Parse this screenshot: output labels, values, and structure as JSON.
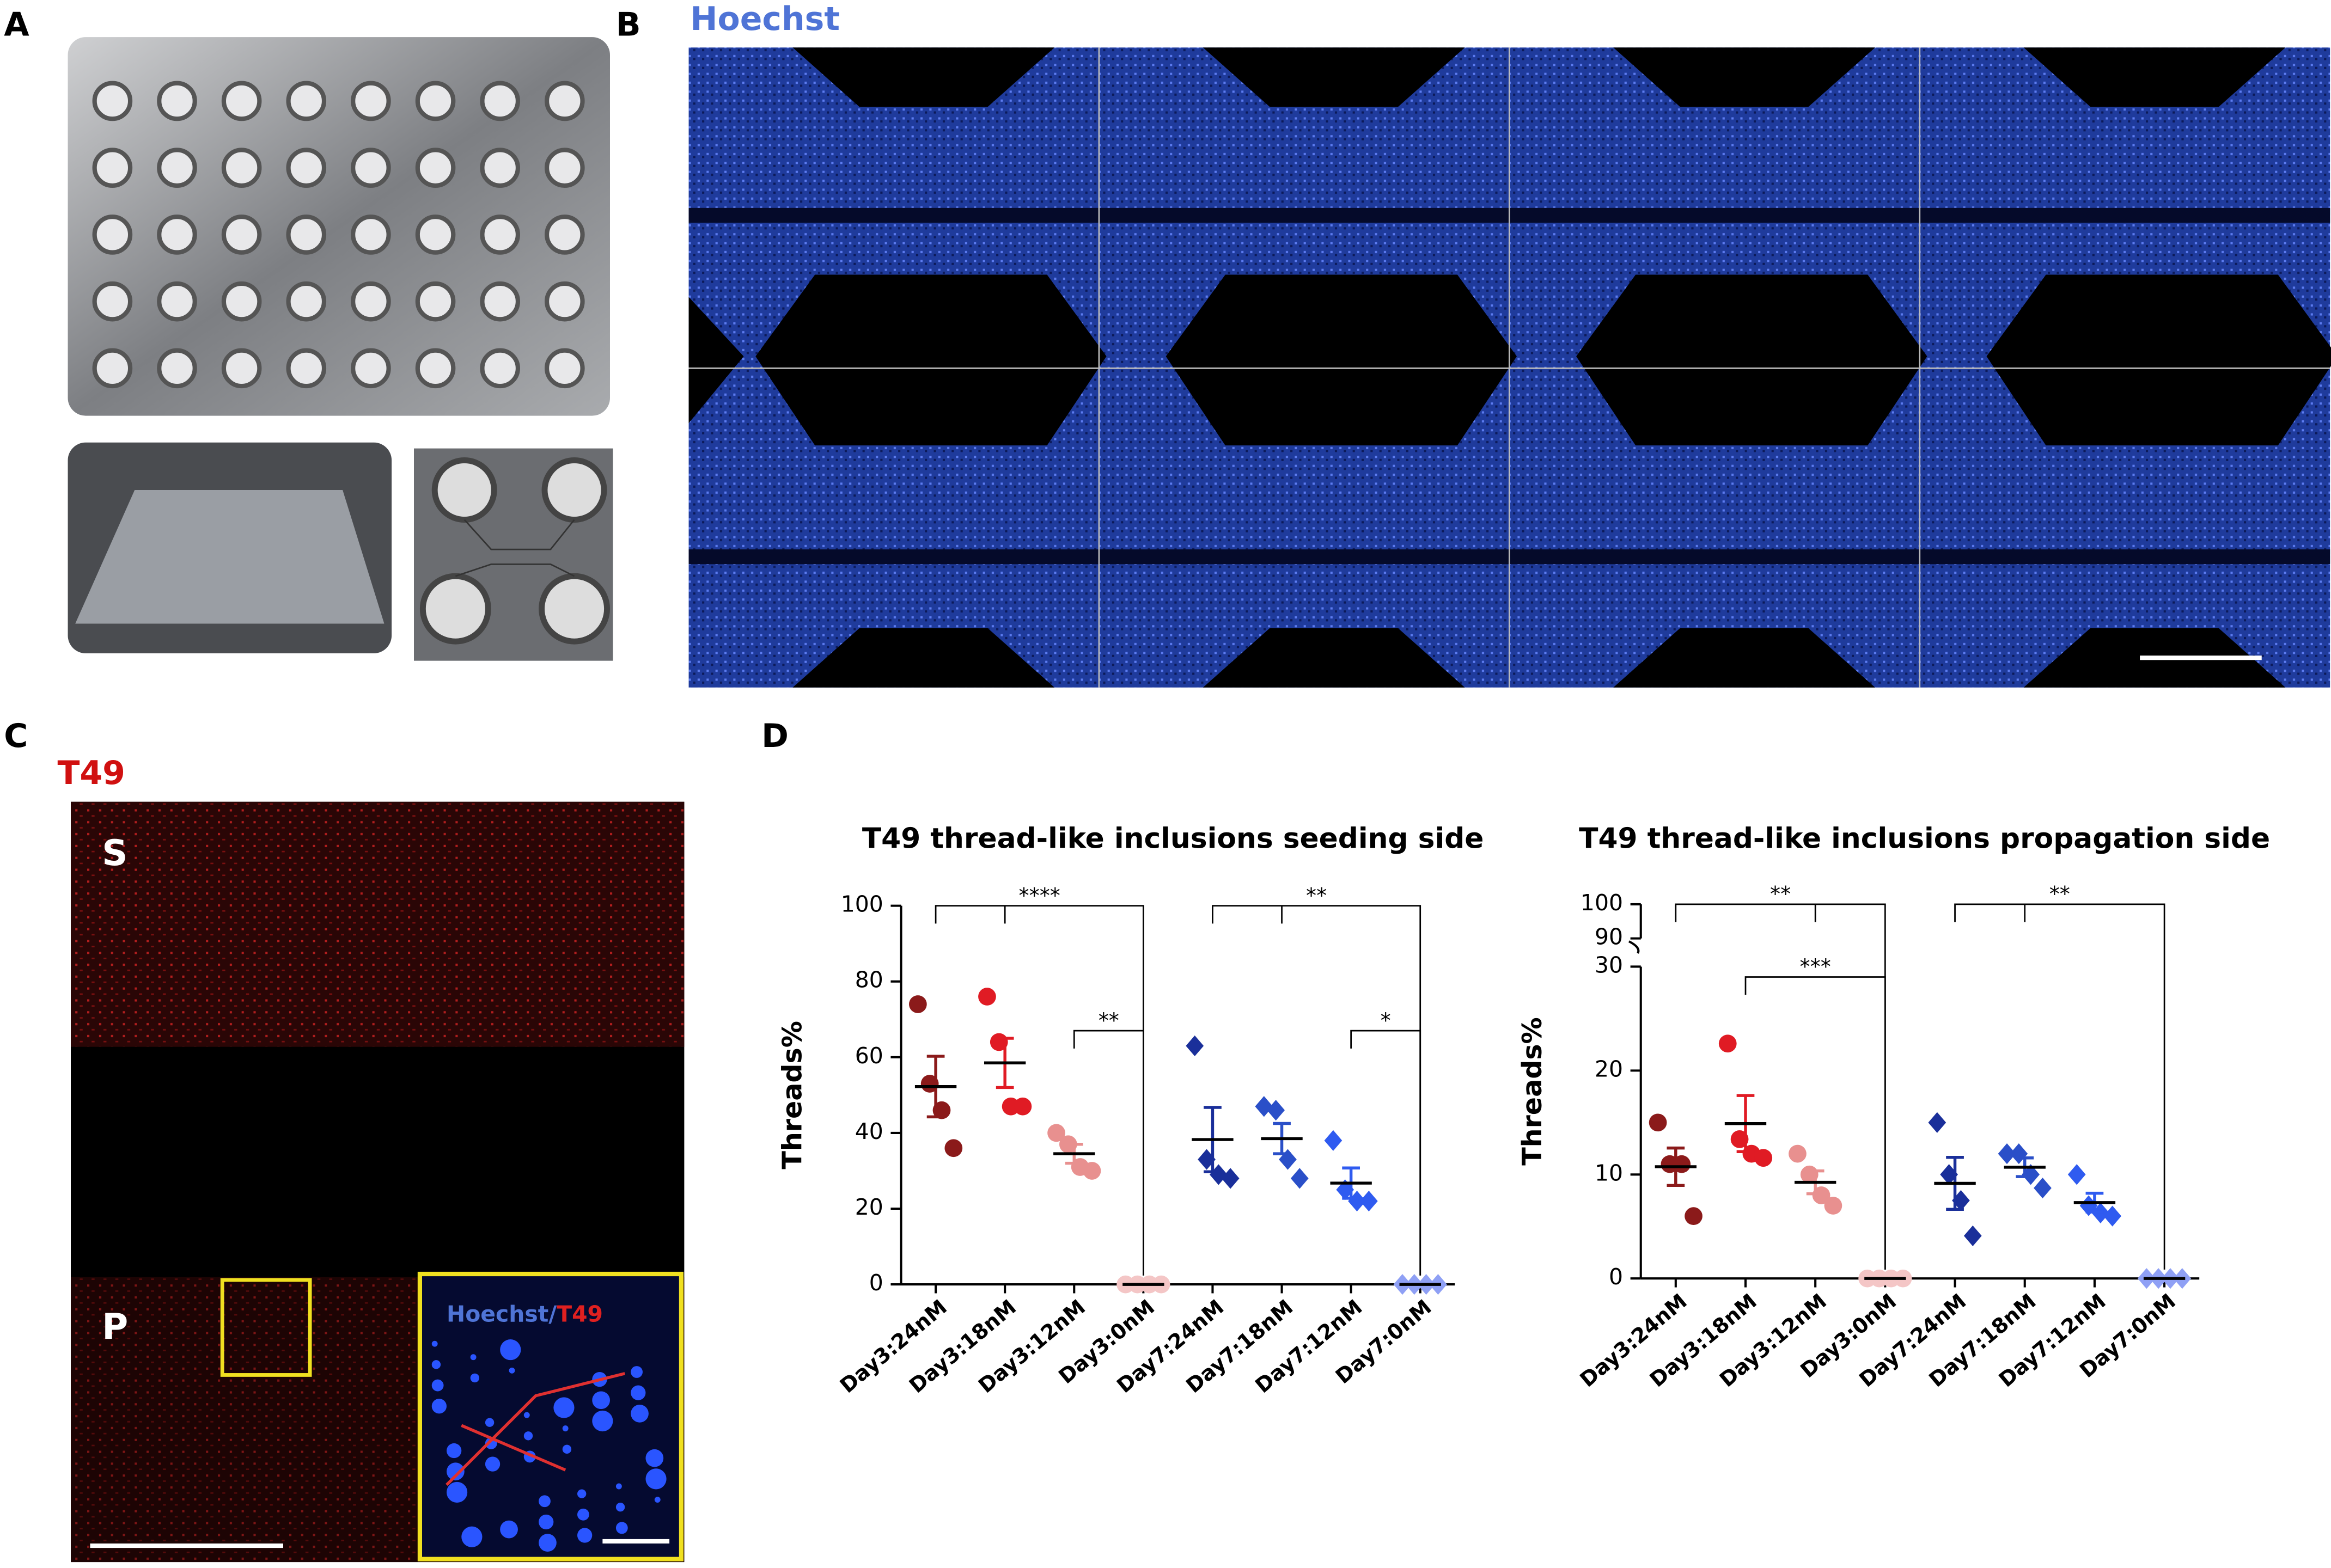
{
  "panel_labels": {
    "a": "A",
    "b": "B",
    "c": "C",
    "d": "D"
  },
  "panel_b": {
    "stain": "Hoechst"
  },
  "panel_c": {
    "stain": "T49",
    "side_labels": [
      "S",
      "P"
    ],
    "inset_label": [
      "Hoechst/",
      "T49"
    ]
  },
  "chart_data": [
    {
      "type": "dot",
      "title": "T49 thread-like inclusions seeding side",
      "y_label": "Threads%",
      "categories": [
        "Day3:24nM",
        "Day3:18nM",
        "Day3:12nM",
        "Day3:0nM",
        "Day7:24nM",
        "Day7:18nM",
        "Day7:12nM",
        "Day7:0nM"
      ],
      "markers": [
        "circle",
        "circle",
        "circle",
        "circle",
        "diamond",
        "diamond",
        "diamond",
        "diamond"
      ],
      "colors": [
        "#8b1a1a",
        "#e01b24",
        "#e8908f",
        "#f4c6c6",
        "#1a2f9a",
        "#2a4fc8",
        "#2f5bf0",
        "#8fa0f5"
      ],
      "points": [
        [
          74,
          53,
          46,
          36
        ],
        [
          76,
          64,
          47,
          47
        ],
        [
          40,
          37,
          31,
          30
        ],
        [
          0,
          0,
          0,
          0
        ],
        [
          63,
          33,
          29,
          28
        ],
        [
          47,
          46,
          33,
          28
        ],
        [
          38,
          25,
          22,
          22
        ],
        [
          0,
          0,
          0,
          0
        ]
      ],
      "means": [
        52.25,
        58.5,
        34.5,
        0,
        38.25,
        38.5,
        26.75,
        0
      ],
      "sems": [
        8,
        6.5,
        2.5,
        0,
        8.5,
        4,
        4,
        0
      ],
      "ylim": [
        0,
        100
      ],
      "yticks": [
        0,
        20,
        40,
        60,
        80,
        100
      ],
      "annotations": [
        {
          "text": "****",
          "from": 0,
          "to": 3,
          "mid": 1,
          "y": 100
        },
        {
          "text": "**",
          "from": 2,
          "to": 3,
          "y": 67
        },
        {
          "text": "**",
          "from": 4,
          "to": 7,
          "mid": 5,
          "y": 100
        },
        {
          "text": "*",
          "from": 6,
          "to": 7,
          "y": 67
        }
      ]
    },
    {
      "type": "dot",
      "title": "T49 thread-like inclusions propagation side",
      "y_label": "Threads%",
      "categories": [
        "Day3:24nM",
        "Day3:18nM",
        "Day3:12nM",
        "Day3:0nM",
        "Day7:24nM",
        "Day7:18nM",
        "Day7:12nM",
        "Day7:0nM"
      ],
      "markers": [
        "circle",
        "circle",
        "circle",
        "circle",
        "diamond",
        "diamond",
        "diamond",
        "diamond"
      ],
      "colors": [
        "#8b1a1a",
        "#e01b24",
        "#e8908f",
        "#f4c6c6",
        "#1a2f9a",
        "#2a4fc8",
        "#2f5bf0",
        "#8fa0f5"
      ],
      "points": [
        [
          15,
          11,
          11,
          6
        ],
        [
          22.6,
          13.4,
          12,
          11.6
        ],
        [
          12,
          10,
          8,
          7
        ],
        [
          0,
          0,
          0,
          0
        ],
        [
          15,
          10,
          7.5,
          4.1
        ],
        [
          12,
          12,
          10,
          8.7
        ],
        [
          10,
          7,
          6.3,
          6
        ],
        [
          0,
          0,
          0,
          0
        ]
      ],
      "means": [
        10.75,
        14.9,
        9.25,
        0,
        9.15,
        10.7,
        7.3,
        0
      ],
      "sems": [
        1.8,
        2.7,
        1.1,
        0,
        2.5,
        0.9,
        0.9,
        0
      ],
      "ylim": [
        0,
        100
      ],
      "axis_break": [
        30,
        90
      ],
      "yticks": [
        0,
        10,
        20,
        30,
        90,
        100
      ],
      "annotations": [
        {
          "text": "**",
          "from": 0,
          "to": 3,
          "mid": 2,
          "y": 100
        },
        {
          "text": "***",
          "from": 1,
          "to": 3,
          "y": 29
        },
        {
          "text": "**",
          "from": 4,
          "to": 7,
          "mid": 5,
          "y": 100
        }
      ]
    }
  ]
}
